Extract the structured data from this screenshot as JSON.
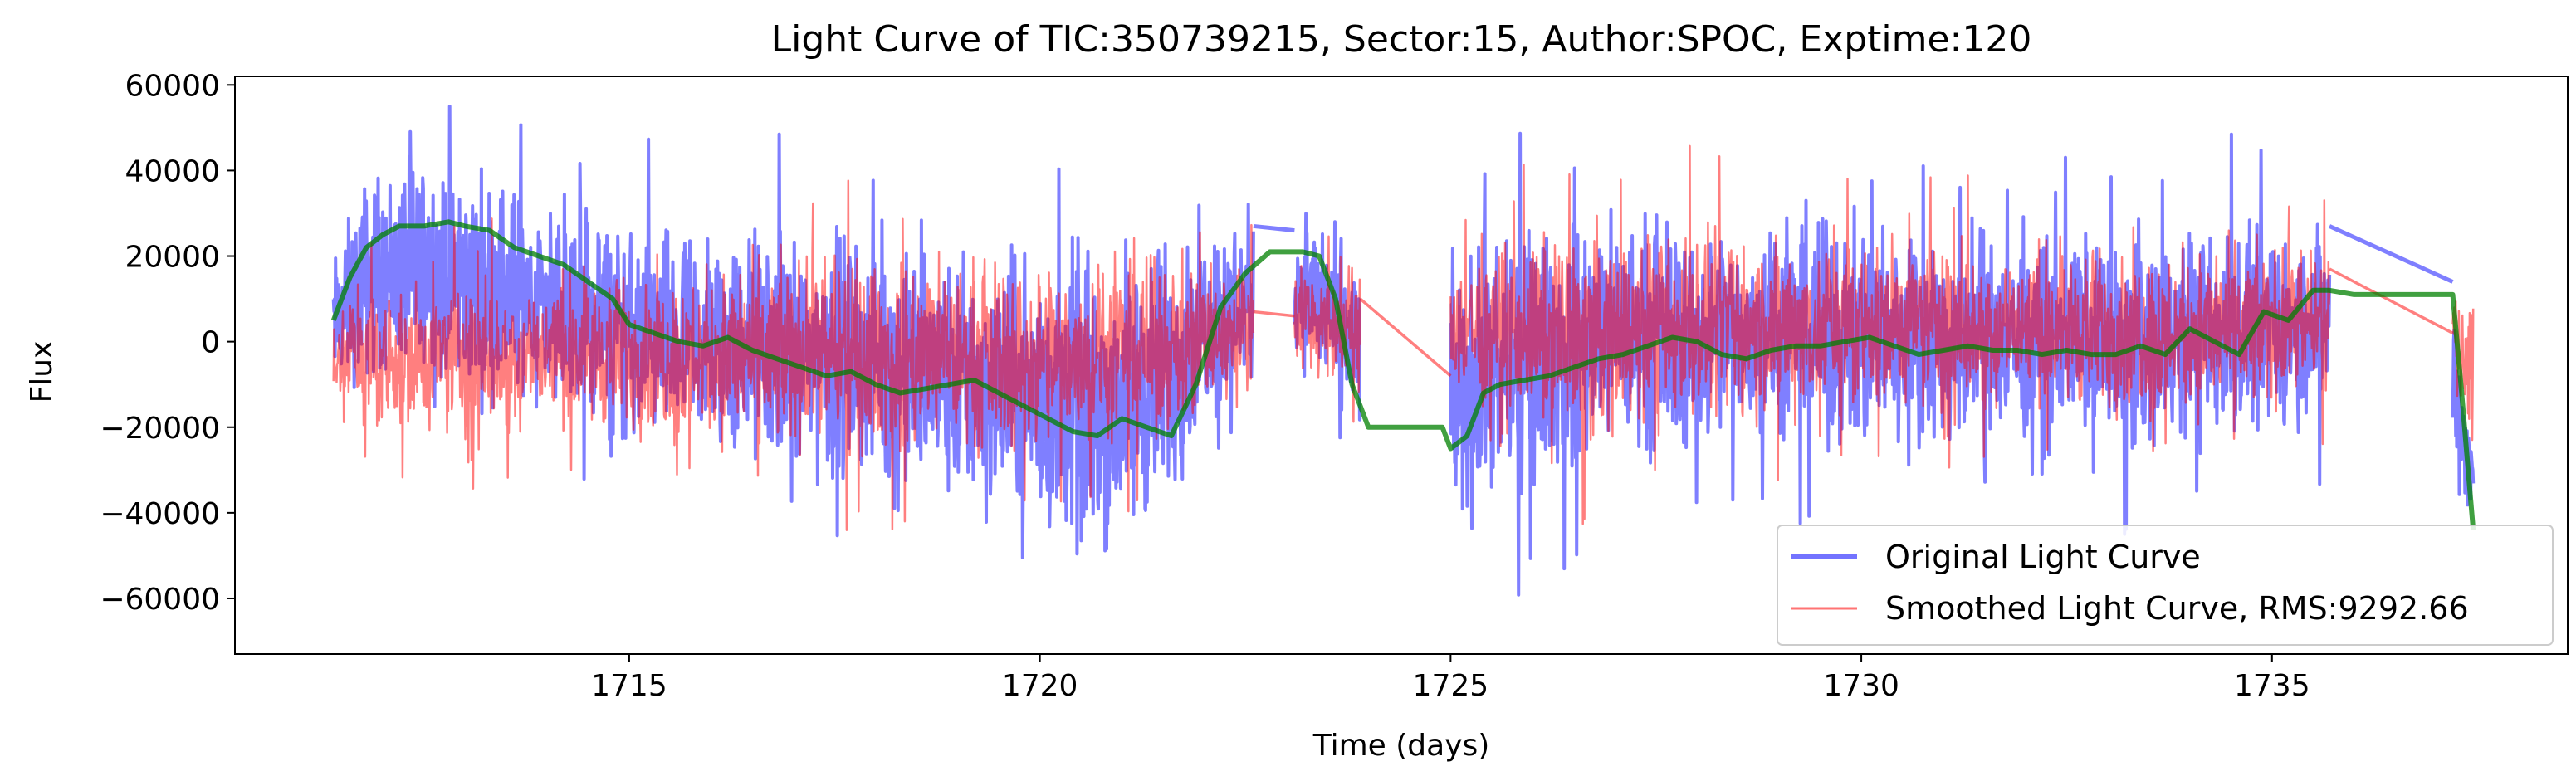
{
  "chart_data": {
    "type": "line",
    "title": "Light Curve of TIC:350739215, Sector:15, Author:SPOC, Exptime:120",
    "xlabel": "Time (days)",
    "ylabel": "Flux",
    "xlim": [
      1710.2,
      1738.6
    ],
    "ylim": [
      -73000,
      62000
    ],
    "x_ticks": [
      1715,
      1720,
      1725,
      1730,
      1735
    ],
    "y_ticks": [
      -60000,
      -40000,
      -20000,
      0,
      20000,
      40000,
      60000
    ],
    "x_tick_labels": [
      "1715",
      "1720",
      "1725",
      "1730",
      "1735"
    ],
    "y_tick_labels": [
      "−60000",
      "−40000",
      "−20000",
      "0",
      "20000",
      "40000",
      "60000"
    ],
    "grid": false,
    "legend_position": "lower right",
    "series": [
      {
        "name": "Original Light Curve",
        "color": "#0000ff",
        "style": "noisy",
        "segments": [
          [
            1711.4,
            1722.6
          ],
          [
            1723.1,
            1723.9
          ],
          [
            1725.0,
            1735.7
          ],
          [
            1737.2,
            1737.45
          ]
        ],
        "envelope": {
          "x": [
            1711.4,
            1711.8,
            1712.5,
            1713.0,
            1713.5,
            1714.0,
            1714.5,
            1715.0,
            1715.5,
            1716.0,
            1716.5,
            1717.0,
            1717.5,
            1718.0,
            1718.5,
            1719.0,
            1719.5,
            1720.0,
            1720.5,
            1721.0,
            1721.5,
            1722.0,
            1722.5,
            1723.2,
            1723.8,
            1725.0,
            1725.3,
            1725.6,
            1726.0,
            1726.5,
            1727.0,
            1727.5,
            1728.0,
            1728.5,
            1729.0,
            1729.5,
            1730.0,
            1730.5,
            1731.0,
            1731.5,
            1732.0,
            1732.5,
            1733.0,
            1733.5,
            1734.0,
            1734.5,
            1735.0,
            1735.6,
            1737.2,
            1737.45
          ],
          "upper": [
            22000,
            42000,
            45000,
            43000,
            42000,
            38000,
            35000,
            30000,
            29000,
            30000,
            31000,
            29000,
            28000,
            26000,
            25000,
            25000,
            24000,
            24000,
            26000,
            24000,
            28000,
            30000,
            34000,
            35000,
            22000,
            20000,
            25000,
            25000,
            30000,
            32000,
            32000,
            33000,
            30000,
            30000,
            30000,
            30000,
            30000,
            29000,
            28000,
            28000,
            28000,
            28000,
            28000,
            29000,
            30000,
            29000,
            28000,
            31000,
            14000,
            -20000
          ],
          "lower": [
            -15000,
            -12000,
            -10000,
            -15000,
            -17000,
            -19000,
            -25000,
            -28000,
            -30000,
            -32000,
            -33000,
            -35000,
            -36000,
            -38000,
            -40000,
            -43000,
            -45000,
            -52000,
            -55000,
            -52000,
            -45000,
            -20000,
            -15000,
            -8000,
            -22000,
            -50000,
            -45000,
            -42000,
            -35000,
            -32000,
            -30000,
            -30000,
            -29000,
            -28000,
            -28000,
            -28000,
            -28000,
            -28000,
            -27000,
            -27000,
            -27000,
            -27000,
            -27000,
            -27000,
            -28000,
            -27000,
            -24000,
            -20000,
            -30000,
            -48000
          ],
          "max_spike": 55000,
          "min_spike": -66000
        },
        "gap_lines": [
          {
            "x": [
              1722.6,
              1723.1
            ],
            "y": [
              27000,
              26000
            ]
          },
          {
            "x": [
              1735.7,
              1737.2
            ],
            "y": [
              27000,
              14000
            ]
          }
        ]
      },
      {
        "name": "Smoothed Light Curve, RMS:9292.66",
        "color": "#ff0000",
        "style": "noisy",
        "segments": [
          [
            1711.4,
            1722.6
          ],
          [
            1723.1,
            1723.9
          ],
          [
            1725.0,
            1735.7
          ],
          [
            1737.2,
            1737.45
          ]
        ],
        "envelope": {
          "x": [
            1711.4,
            1712.0,
            1713.0,
            1714.0,
            1715.0,
            1716.0,
            1717.0,
            1718.0,
            1719.0,
            1720.0,
            1721.0,
            1722.0,
            1722.6,
            1723.1,
            1723.9,
            1725.0,
            1726.0,
            1727.0,
            1728.0,
            1729.0,
            1730.0,
            1731.0,
            1732.0,
            1733.0,
            1734.0,
            1735.0,
            1735.7,
            1737.2,
            1737.45
          ],
          "upper": [
            12000,
            15000,
            16000,
            18000,
            18000,
            20000,
            22000,
            22000,
            22000,
            22000,
            22000,
            20000,
            20000,
            22000,
            18000,
            22000,
            28000,
            30000,
            28000,
            28000,
            27000,
            26000,
            25000,
            25000,
            25000,
            24000,
            22000,
            10000,
            12000
          ],
          "lower": [
            -15000,
            -24000,
            -24000,
            -23000,
            -24000,
            -26000,
            -28000,
            -28000,
            -28000,
            -30000,
            -28000,
            -20000,
            -12000,
            -8000,
            -16000,
            -15000,
            -25000,
            -25000,
            -22000,
            -20000,
            -18000,
            -18000,
            -18000,
            -19000,
            -20000,
            -18000,
            -12000,
            -2000,
            -30000
          ],
          "max_spike": 46000,
          "min_spike": -45000
        },
        "gap_lines": [
          {
            "x": [
              1722.6,
              1723.1
            ],
            "y": [
              7000,
              6000
            ]
          },
          {
            "x": [
              1723.9,
              1725.0
            ],
            "y": [
              10000,
              -8000
            ]
          },
          {
            "x": [
              1735.7,
              1737.2
            ],
            "y": [
              17000,
              2000
            ]
          }
        ]
      },
      {
        "name": "Trend",
        "color": "#008000",
        "style": "smooth",
        "x": [
          1711.4,
          1711.6,
          1711.8,
          1712.0,
          1712.2,
          1712.5,
          1712.8,
          1713.0,
          1713.3,
          1713.6,
          1713.9,
          1714.2,
          1714.5,
          1714.8,
          1715.0,
          1715.3,
          1715.6,
          1715.9,
          1716.2,
          1716.5,
          1716.8,
          1717.1,
          1717.4,
          1717.7,
          1718.0,
          1718.3,
          1718.6,
          1718.9,
          1719.2,
          1719.5,
          1719.8,
          1720.1,
          1720.4,
          1720.7,
          1721.0,
          1721.3,
          1721.6,
          1721.9,
          1722.2,
          1722.5,
          1722.8,
          1723.0,
          1723.2,
          1723.4,
          1723.6,
          1723.8,
          1724.0,
          1724.5,
          1724.9,
          1725.0,
          1725.2,
          1725.4,
          1725.6,
          1725.9,
          1726.2,
          1726.5,
          1726.8,
          1727.1,
          1727.4,
          1727.7,
          1728.0,
          1728.3,
          1728.6,
          1728.9,
          1729.2,
          1729.5,
          1729.8,
          1730.1,
          1730.4,
          1730.7,
          1731.0,
          1731.3,
          1731.6,
          1731.9,
          1732.2,
          1732.5,
          1732.8,
          1733.1,
          1733.4,
          1733.7,
          1734.0,
          1734.3,
          1734.6,
          1734.9,
          1735.2,
          1735.5,
          1735.7,
          1736.0,
          1736.5,
          1737.0,
          1737.2,
          1737.3,
          1737.45
        ],
        "y": [
          5000,
          15000,
          22000,
          25000,
          27000,
          27000,
          28000,
          27000,
          26000,
          22000,
          20000,
          18000,
          14000,
          10000,
          4000,
          2000,
          0,
          -1000,
          1000,
          -2000,
          -4000,
          -6000,
          -8000,
          -7000,
          -10000,
          -12000,
          -11000,
          -10000,
          -9000,
          -12000,
          -15000,
          -18000,
          -21000,
          -22000,
          -18000,
          -20000,
          -22000,
          -10000,
          8000,
          16000,
          21000,
          21000,
          21000,
          20000,
          10000,
          -10000,
          -20000,
          -20000,
          -20000,
          -25000,
          -22000,
          -12000,
          -10000,
          -9000,
          -8000,
          -6000,
          -4000,
          -3000,
          -1000,
          1000,
          0,
          -3000,
          -4000,
          -2000,
          -1000,
          -1000,
          0,
          1000,
          -1000,
          -3000,
          -2000,
          -1000,
          -2000,
          -2000,
          -3000,
          -2000,
          -3000,
          -3000,
          -1000,
          -3000,
          3000,
          0,
          -3000,
          7000,
          5000,
          12000,
          12000,
          11000,
          11000,
          11000,
          11000,
          -10000,
          -44000
        ],
        "in_legend": false
      }
    ]
  }
}
